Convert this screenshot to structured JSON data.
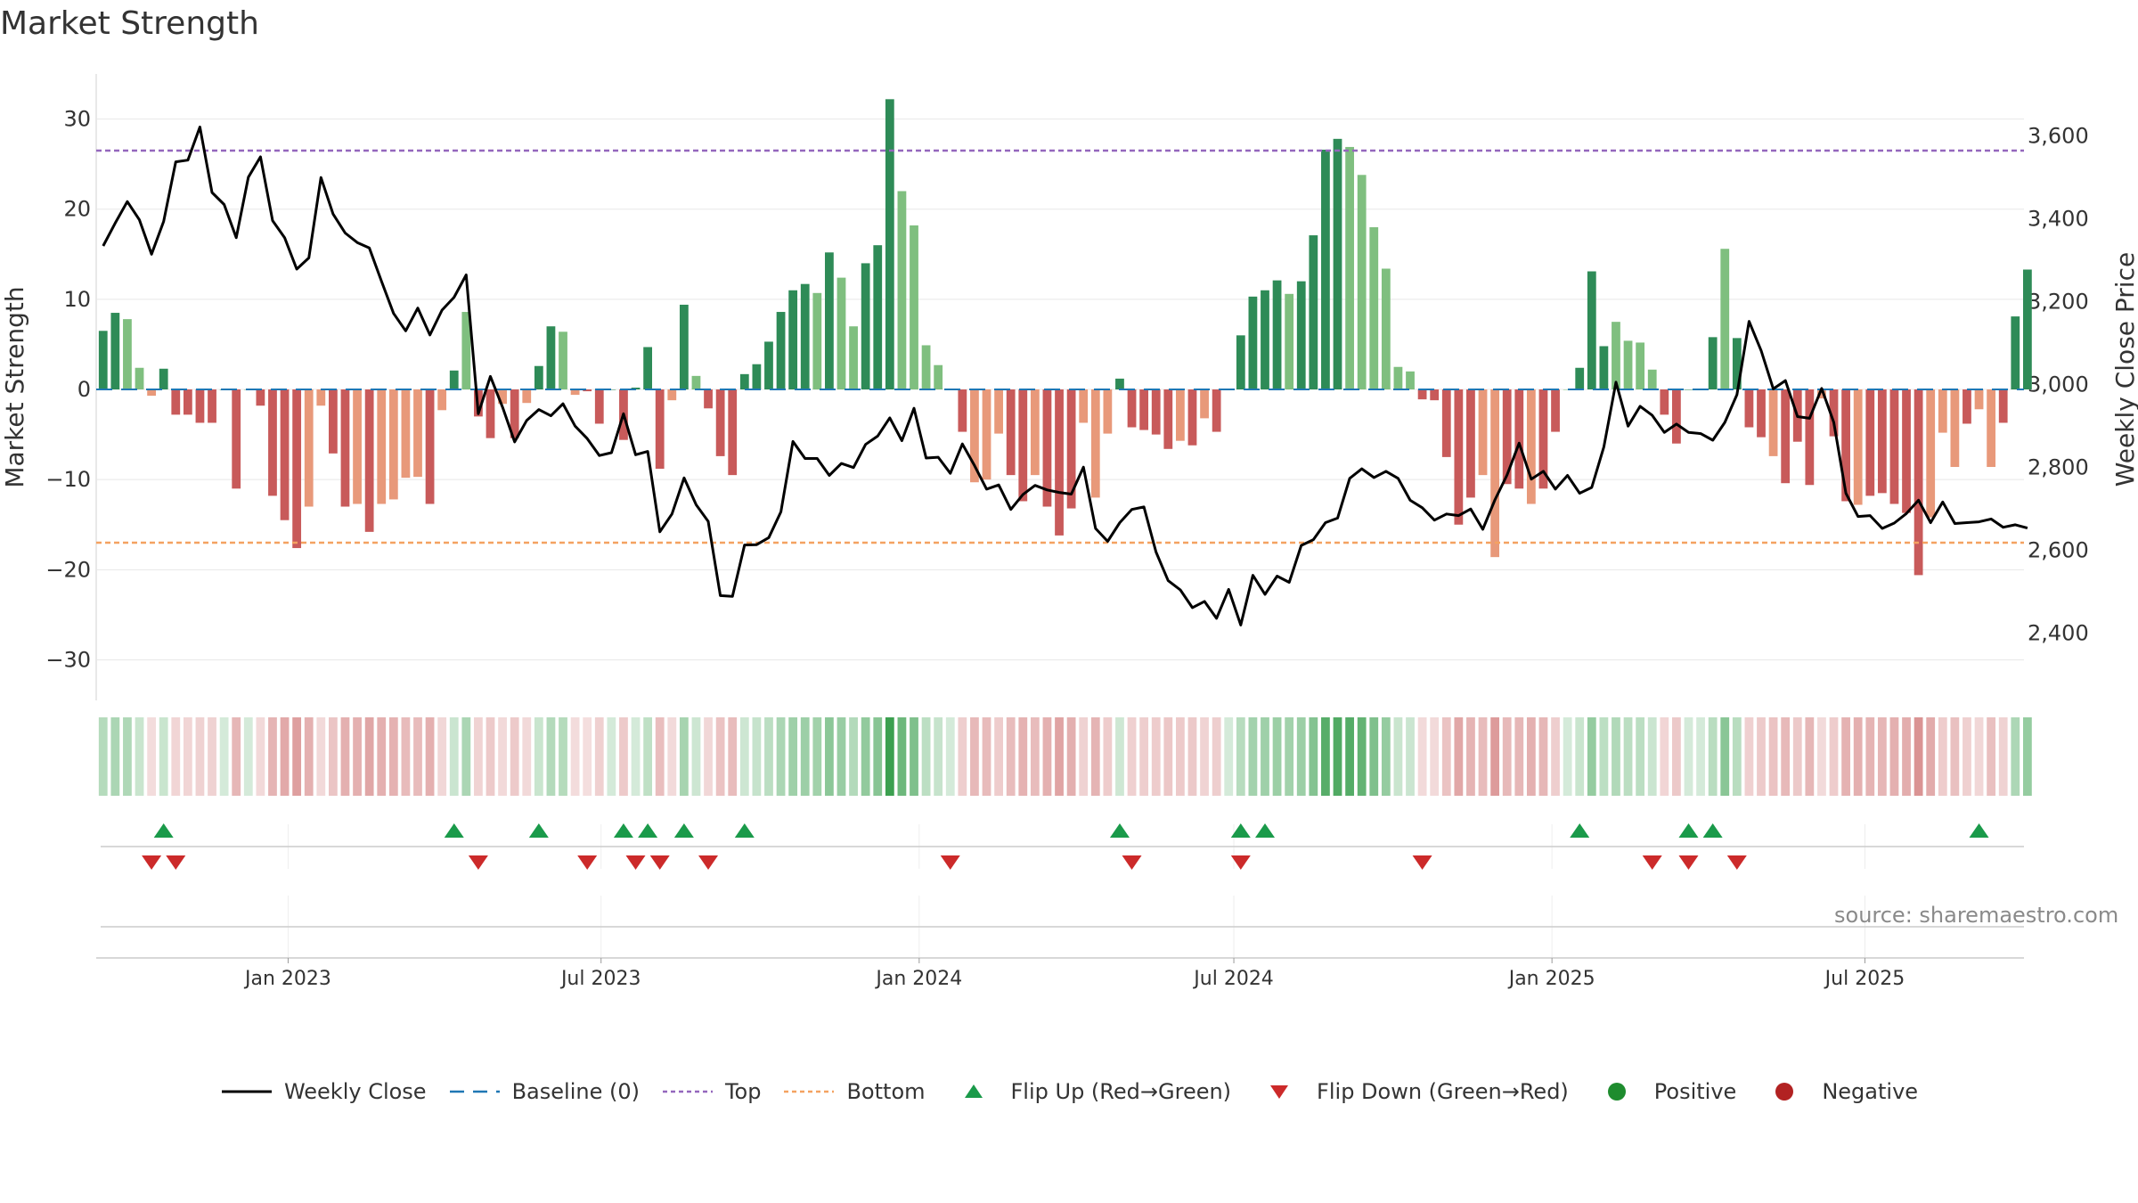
{
  "title": "Market Strength",
  "source": "source: sharemaestro.com",
  "colors": {
    "pos_strong": "#2e8b57",
    "pos_light": "#7fbf7f",
    "neg_strong": "#c85a5a",
    "neg_light": "#e8997a",
    "line": "#000000",
    "baseline": "#1f77b4",
    "top": "#9467bd",
    "bottom": "#f4a261",
    "flip_up": "#1a9a4a",
    "flip_down": "#cc2a2a",
    "positive": "#1e8c2e",
    "negative": "#b22222",
    "grid": "#e8e8e8"
  },
  "legend": [
    {
      "key": "line",
      "label": "Weekly Close"
    },
    {
      "key": "baseline",
      "label": "Baseline (0)"
    },
    {
      "key": "top",
      "label": "Top"
    },
    {
      "key": "bottom",
      "label": "Bottom"
    },
    {
      "key": "flip_up",
      "label": "Flip Up (Red→Green)"
    },
    {
      "key": "flip_down",
      "label": "Flip Down (Green→Red)"
    },
    {
      "key": "positive",
      "label": "Positive"
    },
    {
      "key": "negative",
      "label": "Negative"
    }
  ],
  "chart_data": {
    "type": "bar",
    "title": "Market Strength",
    "ylabel": "Market Strength",
    "y2label": "Weekly Close Price",
    "ylim": [
      -34.5,
      35
    ],
    "y2lim": [
      2238,
      3750
    ],
    "yticks": [
      30,
      20,
      10,
      0,
      -10,
      -20,
      -30
    ],
    "y2ticks": [
      3600,
      3400,
      3200,
      3000,
      2800,
      2600,
      2400
    ],
    "ytick_labels": [
      "30",
      "20",
      "10",
      "0",
      "−10",
      "−20",
      "−30"
    ],
    "y2tick_labels": [
      "3,600",
      "3,400",
      "3,200",
      "3,000",
      "2,800",
      "2,600",
      "2,400"
    ],
    "x_range": [
      "2022-09-12",
      "2025-10-01"
    ],
    "xticks": [
      {
        "date": "2023-01-01",
        "label": "Jan 2023"
      },
      {
        "date": "2023-07-01",
        "label": "Jul 2023"
      },
      {
        "date": "2024-01-01",
        "label": "Jan 2024"
      },
      {
        "date": "2024-07-01",
        "label": "Jul 2024"
      },
      {
        "date": "2025-01-01",
        "label": "Jan 2025"
      },
      {
        "date": "2025-07-01",
        "label": "Jul 2025"
      }
    ],
    "start_date": "2022-09-16",
    "week_step_days": 7,
    "top_line": 26.5,
    "bottom_line": -17,
    "baseline": 0,
    "strength": [
      6.5,
      8.5,
      7.8,
      2.4,
      -0.7,
      2.3,
      -2.8,
      -2.8,
      -3.7,
      -3.7,
      0.0,
      -11.0,
      0.0,
      -1.8,
      -11.8,
      -14.5,
      -17.6,
      -13.0,
      -1.8,
      -7.1,
      -13.0,
      -12.7,
      -15.8,
      -12.7,
      -12.2,
      -9.8,
      -9.7,
      -12.7,
      -2.3,
      2.1,
      8.6,
      -3.0,
      -5.4,
      -1.6,
      -5.4,
      -1.5,
      2.6,
      7.0,
      6.4,
      -0.6,
      -0.2,
      -3.8,
      0.0,
      -5.6,
      0.2,
      4.7,
      -8.8,
      -1.2,
      9.4,
      1.5,
      -2.1,
      -7.4,
      -9.5,
      1.7,
      2.8,
      5.3,
      8.6,
      11.0,
      11.7,
      10.7,
      15.2,
      12.4,
      7.0,
      14.0,
      16.0,
      32.2,
      22.0,
      18.2,
      4.9,
      2.7,
      0.0,
      -4.7,
      -10.3,
      -10.0,
      -4.9,
      -9.5,
      -12.4,
      -9.5,
      -13.0,
      -16.2,
      -13.2,
      -3.7,
      -12.0,
      -4.9,
      1.2,
      -4.2,
      -4.5,
      -5.0,
      -6.6,
      -5.7,
      -6.2,
      -3.2,
      -4.7,
      0.0,
      6.0,
      10.3,
      11.0,
      12.1,
      10.6,
      12.0,
      17.1,
      26.6,
      27.8,
      26.9,
      23.8,
      18.0,
      13.4,
      2.5,
      2.0,
      -1.1,
      -1.2,
      -7.5,
      -15.0,
      -12.0,
      -9.5,
      -18.6,
      -10.5,
      -11.0,
      -12.7,
      -11.0,
      -4.7,
      0.0,
      2.4,
      13.1,
      4.8,
      7.5,
      5.4,
      5.2,
      2.2,
      -2.8,
      -6.0,
      0.0,
      0.0,
      5.8,
      15.6,
      5.7,
      -4.2,
      -5.3,
      -7.4,
      -10.4,
      -5.8,
      -10.6,
      -1.0,
      -5.2,
      -12.4,
      -12.8,
      -11.8,
      -11.5,
      -12.7,
      -13.7,
      -20.6,
      -14.2,
      -4.8,
      -8.6,
      -3.8,
      -2.2,
      -8.6,
      -3.7,
      8.1,
      13.3
    ],
    "shade": [
      "s",
      "s",
      "l",
      "l",
      "l",
      "s",
      "s",
      "s",
      "s",
      "s",
      "s",
      "s",
      "l",
      "s",
      "s",
      "s",
      "s",
      "l",
      "l",
      "s",
      "s",
      "l",
      "s",
      "l",
      "l",
      "l",
      "l",
      "s",
      "l",
      "s",
      "l",
      "s",
      "s",
      "l",
      "s",
      "l",
      "s",
      "s",
      "l",
      "l",
      "s",
      "s",
      "s",
      "s",
      "s",
      "s",
      "s",
      "l",
      "s",
      "l",
      "s",
      "s",
      "s",
      "s",
      "s",
      "s",
      "s",
      "s",
      "s",
      "l",
      "s",
      "l",
      "l",
      "s",
      "s",
      "s",
      "l",
      "l",
      "l",
      "l",
      "s",
      "s",
      "l",
      "l",
      "l",
      "s",
      "s",
      "l",
      "s",
      "s",
      "s",
      "l",
      "l",
      "l",
      "s",
      "s",
      "s",
      "s",
      "s",
      "l",
      "s",
      "l",
      "s",
      "s",
      "s",
      "s",
      "s",
      "s",
      "l",
      "s",
      "s",
      "s",
      "s",
      "l",
      "l",
      "l",
      "l",
      "l",
      "l",
      "s",
      "s",
      "s",
      "s",
      "s",
      "l",
      "l",
      "s",
      "s",
      "l",
      "s",
      "s",
      "l",
      "s",
      "s",
      "s",
      "l",
      "l",
      "l",
      "l",
      "s",
      "s",
      "s",
      "s",
      "s",
      "l",
      "s",
      "s",
      "s",
      "l",
      "s",
      "s",
      "s",
      "l",
      "s",
      "s",
      "l",
      "s",
      "s",
      "s",
      "s",
      "s",
      "l",
      "l",
      "l",
      "s",
      "l",
      "l",
      "s",
      "s",
      "s",
      "s"
    ],
    "price": [
      3335,
      3390,
      3442,
      3398,
      3315,
      3394,
      3538,
      3542,
      3622,
      3464,
      3435,
      3355,
      3501,
      3550,
      3396,
      3355,
      3279,
      3306,
      3500,
      3412,
      3366,
      3343,
      3330,
      3250,
      3172,
      3130,
      3185,
      3120,
      3180,
      3211,
      3265,
      2930,
      3020,
      2946,
      2862,
      2914,
      2940,
      2925,
      2954,
      2900,
      2870,
      2829,
      2836,
      2930,
      2831,
      2839,
      2645,
      2688,
      2775,
      2710,
      2670,
      2491,
      2489,
      2613,
      2614,
      2631,
      2693,
      2863,
      2822,
      2822,
      2781,
      2810,
      2800,
      2856,
      2876,
      2920,
      2865,
      2943,
      2823,
      2825,
      2786,
      2857,
      2805,
      2748,
      2758,
      2699,
      2735,
      2757,
      2746,
      2740,
      2736,
      2801,
      2653,
      2622,
      2667,
      2699,
      2705,
      2596,
      2527,
      2505,
      2462,
      2477,
      2436,
      2506,
      2420,
      2540,
      2494,
      2538,
      2523,
      2612,
      2626,
      2667,
      2678,
      2774,
      2797,
      2776,
      2791,
      2774,
      2721,
      2703,
      2673,
      2688,
      2684,
      2700,
      2651,
      2722,
      2782,
      2859,
      2772,
      2791,
      2748,
      2781,
      2738,
      2752,
      2850,
      3006,
      2900,
      2948,
      2926,
      2885,
      2905,
      2885,
      2882,
      2866,
      2909,
      2976,
      3153,
      3082,
      2990,
      3010,
      2923,
      2919,
      2991,
      2909,
      2738,
      2682,
      2684,
      2653,
      2666,
      2689,
      2721,
      2667,
      2717,
      2665,
      2667,
      2669,
      2676,
      2656,
      2662,
      2654
    ],
    "flip_up_idx": [
      5,
      29,
      36,
      43,
      45,
      48,
      53,
      84,
      94,
      96,
      122,
      131,
      133,
      155
    ],
    "flip_down_idx": [
      4,
      6,
      31,
      40,
      44,
      46,
      50,
      70,
      85,
      94,
      109,
      128,
      131,
      135
    ]
  }
}
